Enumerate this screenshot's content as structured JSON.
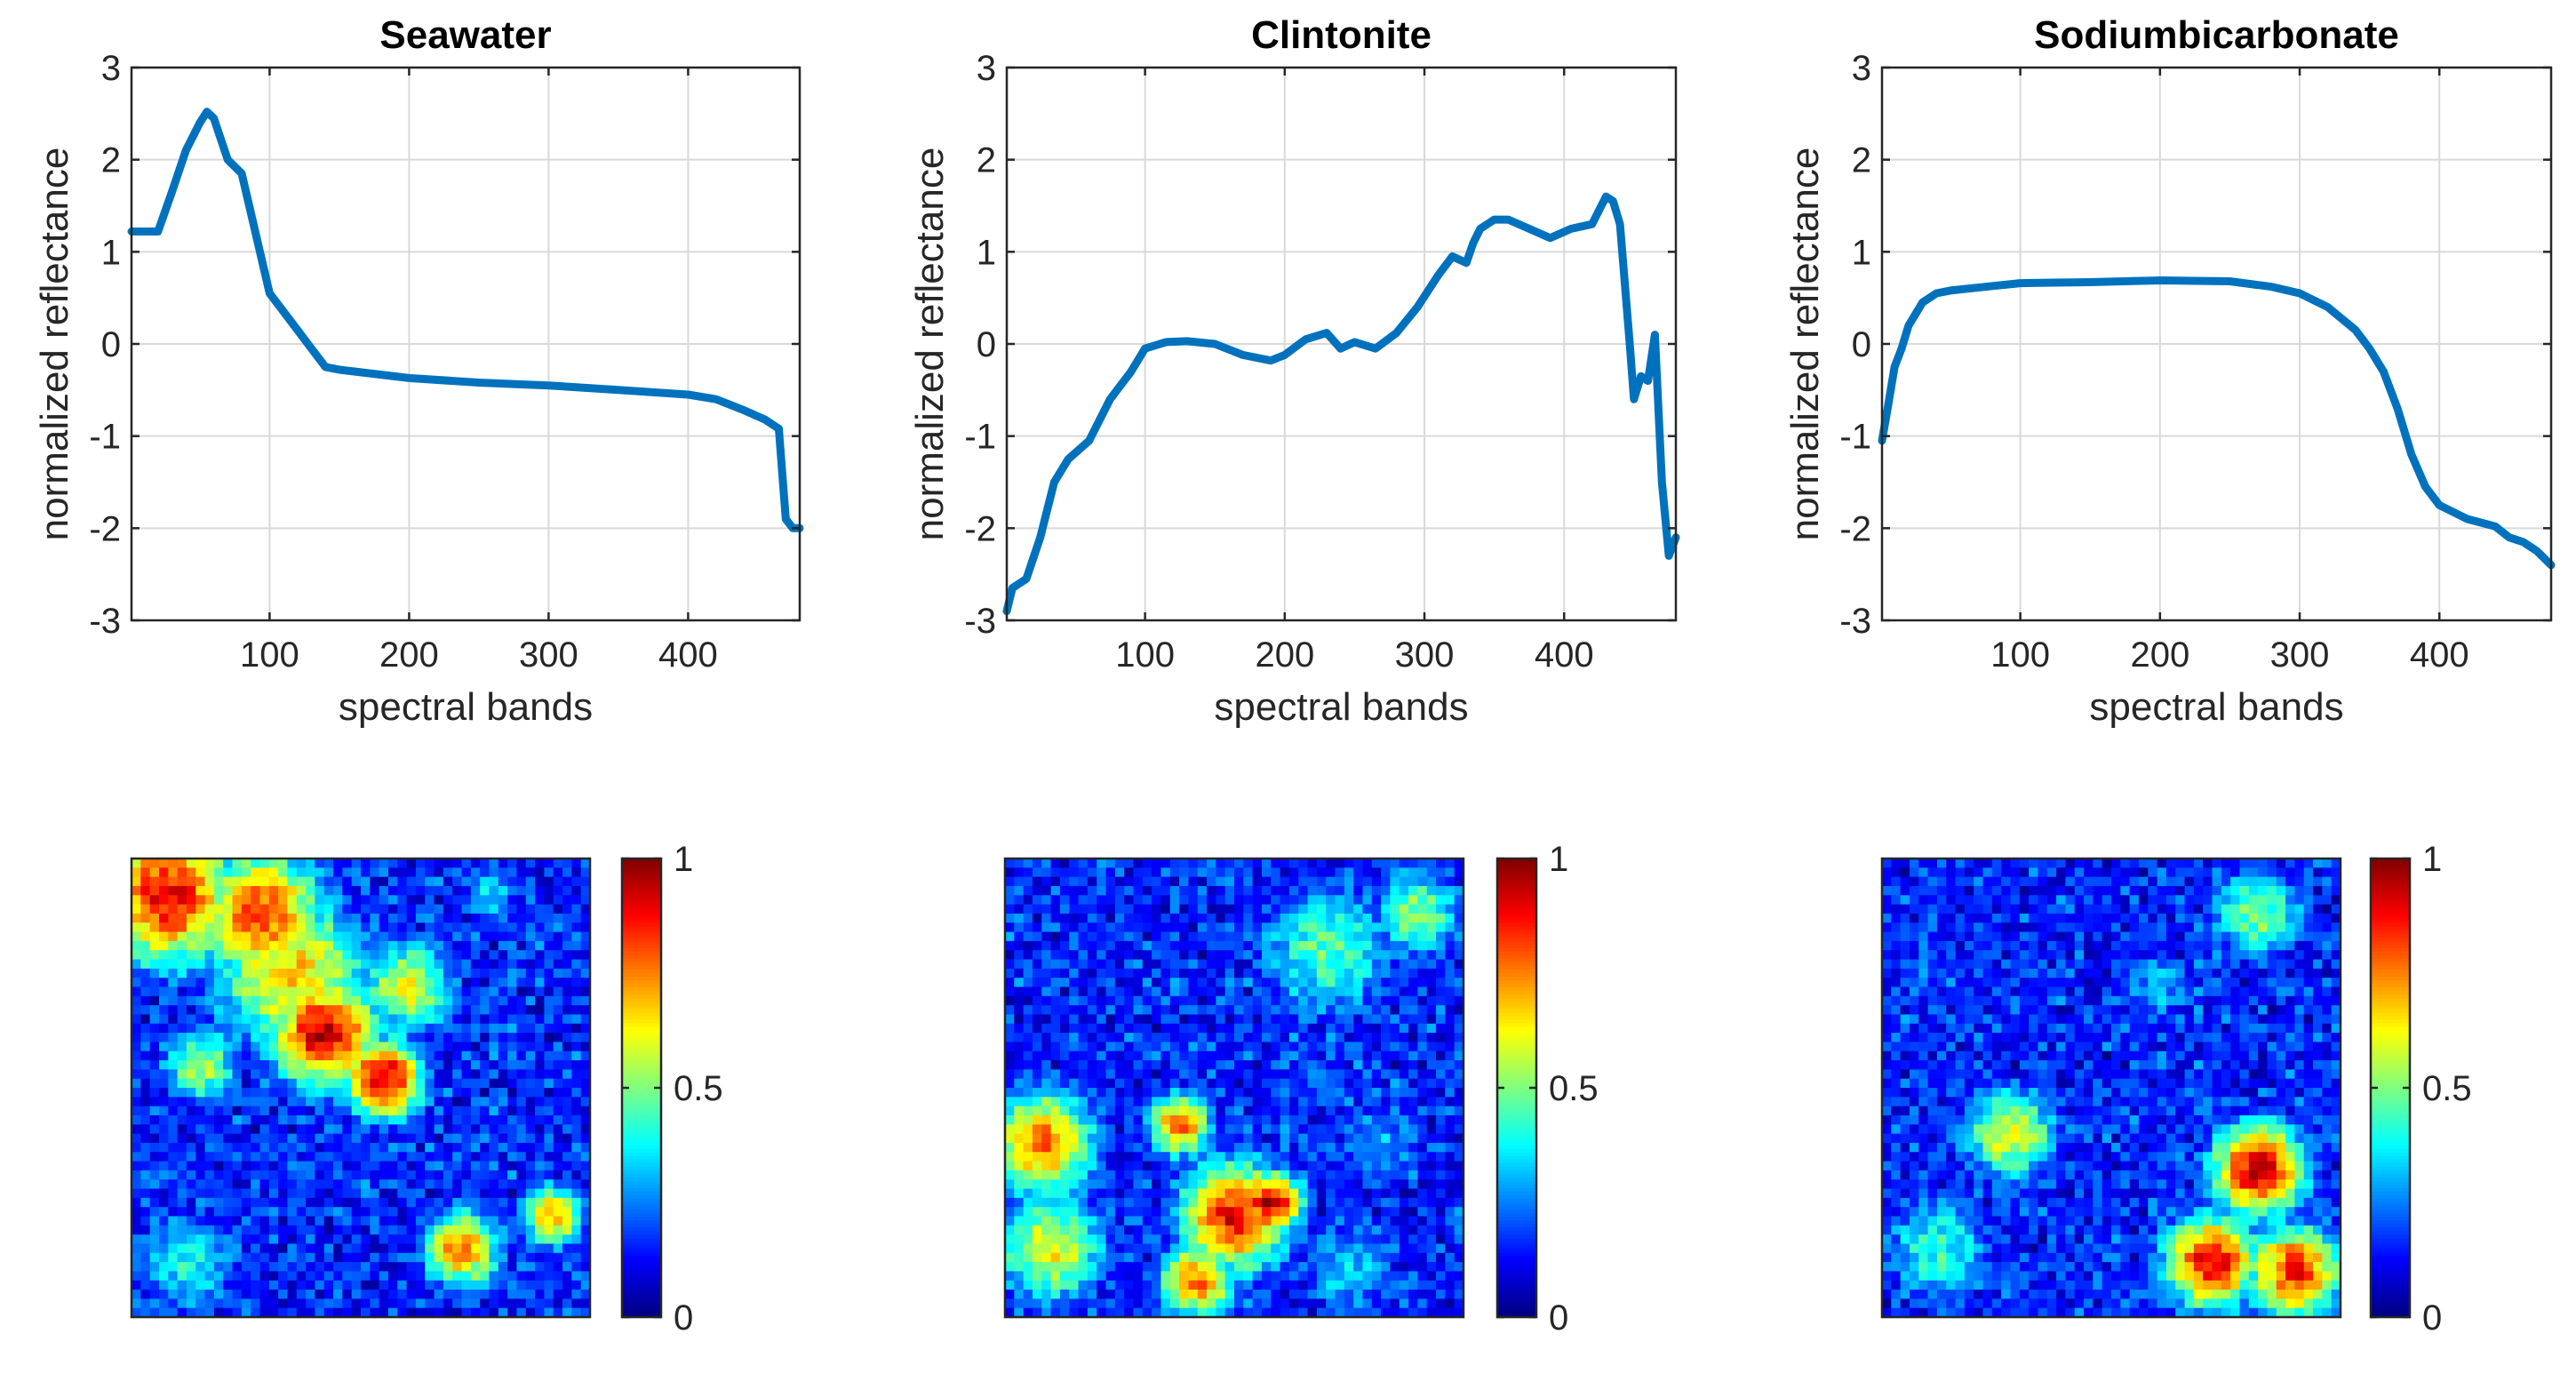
{
  "chart_data": [
    {
      "type": "line",
      "title": "Seawater",
      "xlabel": "spectral bands",
      "ylabel": "normalized reflectance",
      "xlim": [
        1,
        480
      ],
      "ylim": [
        -3,
        3
      ],
      "xticks": [
        100,
        200,
        300,
        400
      ],
      "yticks": [
        -3,
        -2,
        -1,
        0,
        1,
        2,
        3
      ],
      "xtick_labels": [
        "100",
        "200",
        "300",
        "400"
      ],
      "ytick_labels": [
        "-3",
        "-2",
        "-1",
        "0",
        "1",
        "2",
        "3"
      ],
      "grid": true,
      "series_color": "#0072BD",
      "series": [
        {
          "name": "Seawater",
          "x": [
            1,
            20,
            30,
            40,
            50,
            55,
            60,
            70,
            80,
            90,
            100,
            110,
            120,
            130,
            140,
            150,
            200,
            250,
            300,
            350,
            400,
            420,
            440,
            455,
            465,
            470,
            475,
            480
          ],
          "y": [
            1.22,
            1.22,
            1.65,
            2.1,
            2.4,
            2.52,
            2.45,
            2.0,
            1.85,
            1.2,
            0.55,
            0.35,
            0.15,
            -0.05,
            -0.25,
            -0.28,
            -0.37,
            -0.42,
            -0.45,
            -0.5,
            -0.55,
            -0.6,
            -0.72,
            -0.82,
            -0.92,
            -1.9,
            -2.0,
            -2.0
          ]
        }
      ]
    },
    {
      "type": "line",
      "title": "Clintonite",
      "xlabel": "spectral bands",
      "ylabel": "normalized reflectance",
      "xlim": [
        1,
        480
      ],
      "ylim": [
        -3,
        3
      ],
      "xticks": [
        100,
        200,
        300,
        400
      ],
      "yticks": [
        -3,
        -2,
        -1,
        0,
        1,
        2,
        3
      ],
      "xtick_labels": [
        "100",
        "200",
        "300",
        "400"
      ],
      "ytick_labels": [
        "-3",
        "-2",
        "-1",
        "0",
        "1",
        "2",
        "3"
      ],
      "grid": true,
      "series_color": "#0072BD",
      "series": [
        {
          "name": "Clintonite",
          "x": [
            1,
            5,
            15,
            25,
            35,
            45,
            60,
            75,
            90,
            100,
            115,
            130,
            150,
            170,
            190,
            200,
            215,
            230,
            240,
            250,
            265,
            280,
            295,
            310,
            320,
            330,
            335,
            340,
            350,
            360,
            375,
            390,
            405,
            420,
            430,
            435,
            440,
            447,
            450,
            455,
            460,
            465,
            470,
            475,
            480
          ],
          "y": [
            -2.9,
            -2.65,
            -2.55,
            -2.1,
            -1.5,
            -1.25,
            -1.05,
            -0.6,
            -0.3,
            -0.05,
            0.02,
            0.03,
            0.0,
            -0.12,
            -0.18,
            -0.12,
            0.05,
            0.12,
            -0.05,
            0.02,
            -0.05,
            0.12,
            0.4,
            0.75,
            0.95,
            0.88,
            1.1,
            1.25,
            1.35,
            1.35,
            1.25,
            1.15,
            1.25,
            1.3,
            1.6,
            1.55,
            1.3,
            0.0,
            -0.6,
            -0.35,
            -0.4,
            0.1,
            -1.5,
            -2.3,
            -2.1
          ]
        }
      ]
    },
    {
      "type": "line",
      "title": "Sodiumbicarbonate",
      "xlabel": "spectral bands",
      "ylabel": "normalized reflectance",
      "xlim": [
        1,
        480
      ],
      "ylim": [
        -3,
        3
      ],
      "xticks": [
        100,
        200,
        300,
        400
      ],
      "yticks": [
        -3,
        -2,
        -1,
        0,
        1,
        2,
        3
      ],
      "xtick_labels": [
        "100",
        "200",
        "300",
        "400"
      ],
      "ytick_labels": [
        "-3",
        "-2",
        "-1",
        "0",
        "1",
        "2",
        "3"
      ],
      "grid": true,
      "series_color": "#0072BD",
      "series": [
        {
          "name": "Sodiumbicarbonate",
          "x": [
            1,
            5,
            10,
            15,
            20,
            30,
            40,
            50,
            75,
            100,
            150,
            200,
            250,
            280,
            300,
            320,
            340,
            350,
            360,
            370,
            380,
            390,
            400,
            420,
            440,
            450,
            460,
            470,
            480
          ],
          "y": [
            -1.05,
            -0.7,
            -0.25,
            -0.05,
            0.2,
            0.45,
            0.55,
            0.58,
            0.62,
            0.66,
            0.67,
            0.69,
            0.68,
            0.62,
            0.55,
            0.4,
            0.15,
            -0.05,
            -0.3,
            -0.7,
            -1.2,
            -1.55,
            -1.75,
            -1.9,
            -1.98,
            -2.1,
            -2.15,
            -2.25,
            -2.4
          ]
        }
      ]
    },
    {
      "type": "heatmap",
      "title": "",
      "colormap": "jet",
      "grid_size": 50,
      "clim": [
        0,
        1
      ],
      "colorbar_ticks": [
        "0",
        "0.5",
        "1"
      ],
      "blobs": [
        {
          "cx": 0.08,
          "cy": 0.08,
          "r": 0.18,
          "v": 0.88
        },
        {
          "cx": 0.28,
          "cy": 0.12,
          "r": 0.16,
          "v": 0.82
        },
        {
          "cx": 0.42,
          "cy": 0.38,
          "r": 0.14,
          "v": 0.92
        },
        {
          "cx": 0.55,
          "cy": 0.48,
          "r": 0.1,
          "v": 0.95
        },
        {
          "cx": 0.35,
          "cy": 0.25,
          "r": 0.2,
          "v": 0.68
        },
        {
          "cx": 0.6,
          "cy": 0.28,
          "r": 0.12,
          "v": 0.6
        },
        {
          "cx": 0.15,
          "cy": 0.45,
          "r": 0.1,
          "v": 0.55
        },
        {
          "cx": 0.72,
          "cy": 0.85,
          "r": 0.1,
          "v": 0.75
        },
        {
          "cx": 0.92,
          "cy": 0.78,
          "r": 0.08,
          "v": 0.7
        },
        {
          "cx": 0.12,
          "cy": 0.88,
          "r": 0.14,
          "v": 0.38
        },
        {
          "cx": 0.78,
          "cy": 0.08,
          "r": 0.08,
          "v": 0.35
        }
      ]
    },
    {
      "type": "heatmap",
      "title": "",
      "colormap": "jet",
      "grid_size": 50,
      "clim": [
        0,
        1
      ],
      "colorbar_ticks": [
        "0",
        "0.5",
        "1"
      ],
      "blobs": [
        {
          "cx": 0.08,
          "cy": 0.62,
          "r": 0.14,
          "v": 0.75
        },
        {
          "cx": 0.1,
          "cy": 0.85,
          "r": 0.14,
          "v": 0.62
        },
        {
          "cx": 0.5,
          "cy": 0.78,
          "r": 0.14,
          "v": 0.88
        },
        {
          "cx": 0.58,
          "cy": 0.75,
          "r": 0.08,
          "v": 0.95
        },
        {
          "cx": 0.42,
          "cy": 0.92,
          "r": 0.1,
          "v": 0.75
        },
        {
          "cx": 0.38,
          "cy": 0.58,
          "r": 0.08,
          "v": 0.78
        },
        {
          "cx": 0.7,
          "cy": 0.2,
          "r": 0.18,
          "v": 0.45
        },
        {
          "cx": 0.9,
          "cy": 0.12,
          "r": 0.12,
          "v": 0.5
        },
        {
          "cx": 0.82,
          "cy": 0.62,
          "r": 0.12,
          "v": 0.3
        },
        {
          "cx": 0.75,
          "cy": 0.9,
          "r": 0.12,
          "v": 0.35
        }
      ]
    },
    {
      "type": "heatmap",
      "title": "",
      "colormap": "jet",
      "grid_size": 50,
      "clim": [
        0,
        1
      ],
      "colorbar_ticks": [
        "0",
        "0.5",
        "1"
      ],
      "blobs": [
        {
          "cx": 0.82,
          "cy": 0.68,
          "r": 0.12,
          "v": 0.92
        },
        {
          "cx": 0.72,
          "cy": 0.88,
          "r": 0.12,
          "v": 0.9
        },
        {
          "cx": 0.9,
          "cy": 0.9,
          "r": 0.12,
          "v": 0.85
        },
        {
          "cx": 0.82,
          "cy": 0.12,
          "r": 0.12,
          "v": 0.5
        },
        {
          "cx": 0.28,
          "cy": 0.6,
          "r": 0.12,
          "v": 0.62
        },
        {
          "cx": 0.12,
          "cy": 0.85,
          "r": 0.14,
          "v": 0.42
        },
        {
          "cx": 0.6,
          "cy": 0.28,
          "r": 0.1,
          "v": 0.3
        },
        {
          "cx": 0.1,
          "cy": 0.25,
          "r": 0.12,
          "v": 0.22
        }
      ]
    }
  ]
}
